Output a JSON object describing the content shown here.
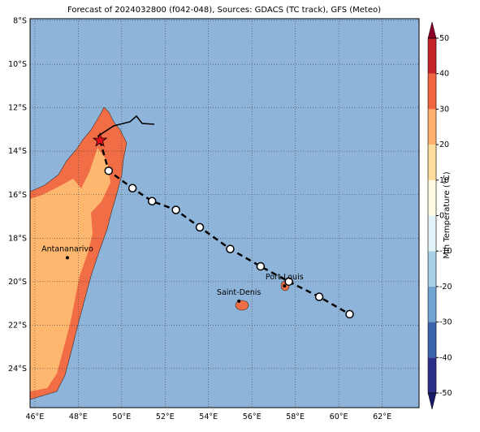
{
  "chart_data": {
    "type": "map",
    "title": "Forecast of 2024032800 (f042-048), Sources: GDACS (TC track), GFS (Meteo)",
    "xlim": [
      45.78,
      63.7
    ],
    "ylim": [
      -25.8,
      -7.9
    ],
    "xticks": [
      {
        "value": 46,
        "label": "46°E"
      },
      {
        "value": 48,
        "label": "48°E"
      },
      {
        "value": 50,
        "label": "50°E"
      },
      {
        "value": 52,
        "label": "52°E"
      },
      {
        "value": 54,
        "label": "54°E"
      },
      {
        "value": 56,
        "label": "56°E"
      },
      {
        "value": 58,
        "label": "58°E"
      },
      {
        "value": 60,
        "label": "60°E"
      },
      {
        "value": 62,
        "label": "62°E"
      }
    ],
    "yticks": [
      {
        "value": -8,
        "label": "8°S"
      },
      {
        "value": -10,
        "label": "10°S"
      },
      {
        "value": -12,
        "label": "12°S"
      },
      {
        "value": -14,
        "label": "14°S"
      },
      {
        "value": -16,
        "label": "16°S"
      },
      {
        "value": -18,
        "label": "18°S"
      },
      {
        "value": -20,
        "label": "20°S"
      },
      {
        "value": -22,
        "label": "22°S"
      },
      {
        "value": -24,
        "label": "24°S"
      }
    ],
    "grid": true,
    "track": {
      "start": {
        "lon": 49.0,
        "lat": -13.5
      },
      "lon": [
        49.4,
        50.5,
        51.4,
        52.5,
        53.6,
        55.0,
        56.4,
        57.7,
        59.1,
        60.5
      ],
      "lat": [
        -14.9,
        -15.7,
        -16.3,
        -16.7,
        -17.5,
        -18.5,
        -19.3,
        -20.0,
        -20.7,
        -21.5
      ]
    },
    "cities": [
      {
        "label": "Antananarivo",
        "lon": 47.5,
        "lat": -18.9
      },
      {
        "label": "Saint-Denis",
        "lon": 55.4,
        "lat": -20.9
      },
      {
        "label": "Port-Louis",
        "lon": 57.5,
        "lat": -20.2
      }
    ],
    "colorbar": {
      "label": "Min Temperature (°C)",
      "lim": [
        -50,
        50
      ],
      "ticks": [
        -50,
        -40,
        -30,
        -20,
        -10,
        0,
        10,
        20,
        30,
        40,
        50
      ],
      "colors": [
        "#2b2f8a",
        "#3c64ad",
        "#6fa3d2",
        "#a7d0e6",
        "#e2f2f8",
        "#fffbe3",
        "#fedd9c",
        "#fdb06a",
        "#f0653f",
        "#c4232a"
      ]
    }
  }
}
